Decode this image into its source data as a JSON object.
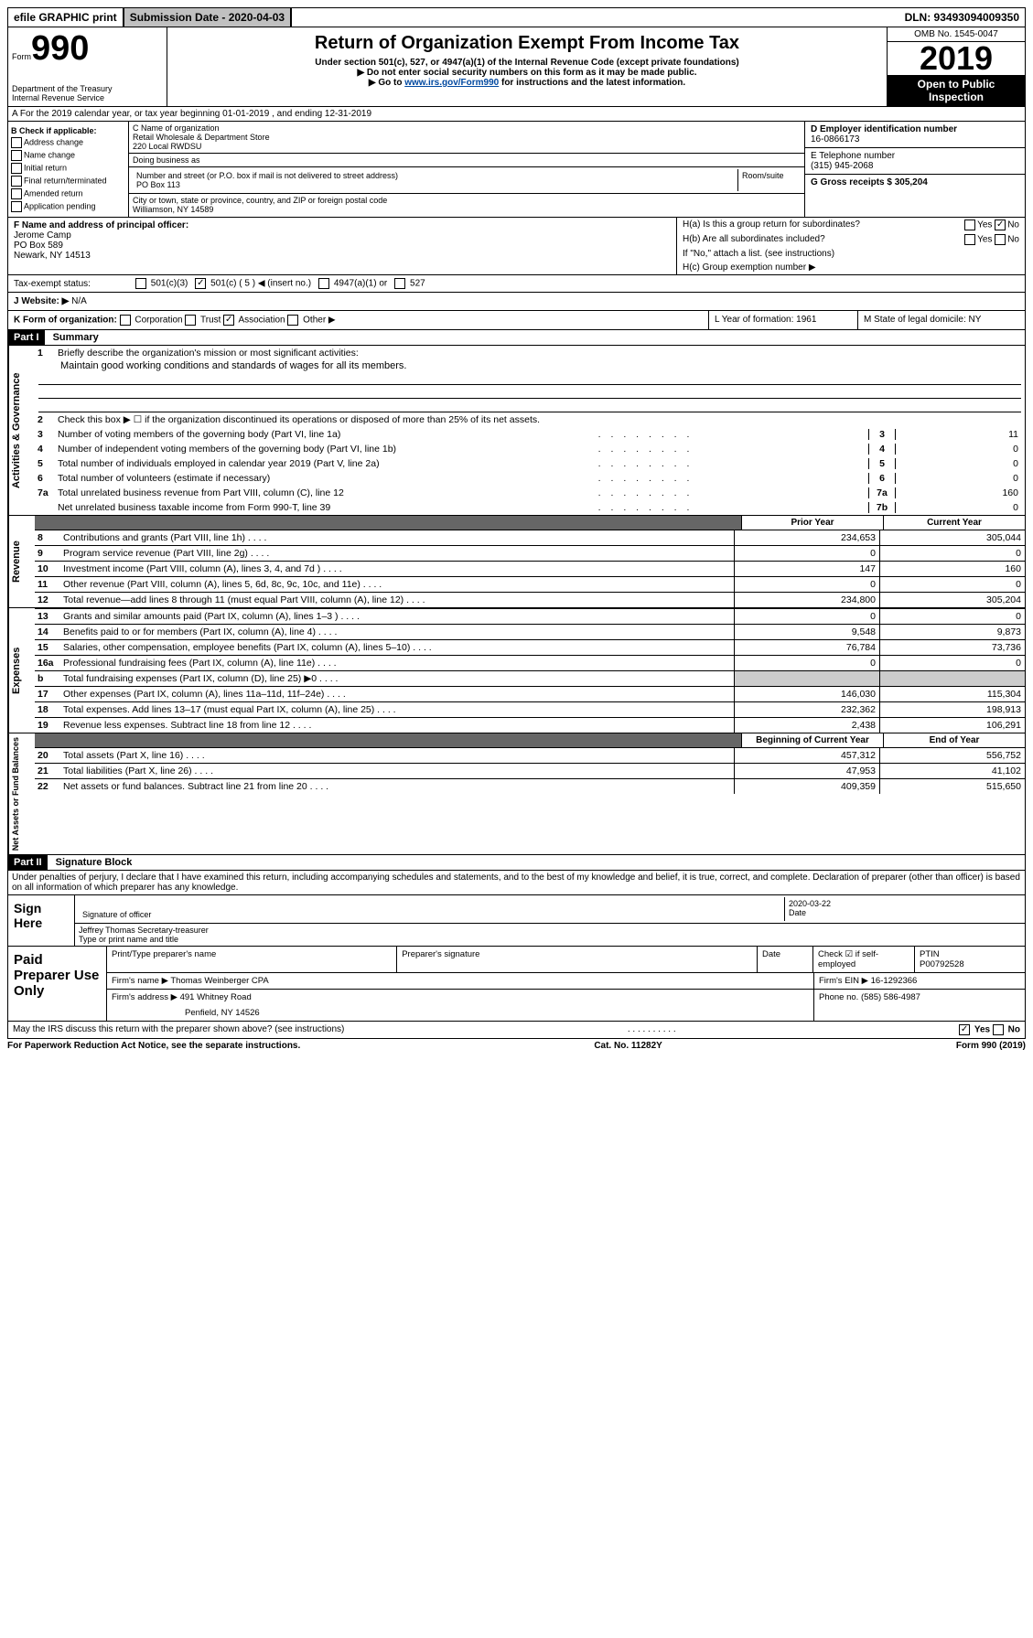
{
  "top": {
    "efile": "efile GRAPHIC print",
    "submission": "Submission Date - 2020-04-03",
    "dln": "DLN: 93493094009350"
  },
  "header": {
    "form": "Form",
    "num": "990",
    "dept": "Department of the Treasury\nInternal Revenue Service",
    "title": "Return of Organization Exempt From Income Tax",
    "sub1": "Under section 501(c), 527, or 4947(a)(1) of the Internal Revenue Code (except private foundations)",
    "sub2": "▶ Do not enter social security numbers on this form as it may be made public.",
    "sub3_pre": "▶ Go to ",
    "sub3_link": "www.irs.gov/Form990",
    "sub3_post": " for instructions and the latest information.",
    "omb": "OMB No. 1545-0047",
    "year": "2019",
    "open": "Open to Public Inspection"
  },
  "rowA": "A   For the 2019 calendar year, or tax year beginning 01-01-2019    , and ending 12-31-2019",
  "b": {
    "label": "B Check if applicable:",
    "opts": [
      "Address change",
      "Name change",
      "Initial return",
      "Final return/terminated",
      "Amended return",
      "Application pending"
    ]
  },
  "c": {
    "name_label": "C Name of organization",
    "name": "Retail Wholesale & Department Store",
    "name2": "220 Local RWDSU",
    "dba": "Doing business as",
    "addr_label": "Number and street (or P.O. box if mail is not delivered to street address)",
    "room": "Room/suite",
    "addr": "PO Box 113",
    "city_label": "City or town, state or province, country, and ZIP or foreign postal code",
    "city": "Williamson, NY  14589"
  },
  "d": {
    "label": "D Employer identification number",
    "val": "16-0866173"
  },
  "e": {
    "label": "E Telephone number",
    "val": "(315) 945-2068"
  },
  "g": {
    "label": "G Gross receipts $ 305,204"
  },
  "f": {
    "label": "F  Name and address of principal officer:",
    "name": "Jerome Camp",
    "addr": "PO Box 589",
    "city": "Newark, NY  14513"
  },
  "h": {
    "a": "H(a)  Is this a group return for subordinates?",
    "b": "H(b)  Are all subordinates included?",
    "b_note": "If \"No,\" attach a list. (see instructions)",
    "c": "H(c)  Group exemption number ▶"
  },
  "tax": {
    "label": "Tax-exempt status:",
    "c3": "501(c)(3)",
    "c": "501(c) ( 5 ) ◀ (insert no.)",
    "a1": "4947(a)(1) or",
    "s527": "527"
  },
  "j": {
    "label": "J   Website: ▶",
    "val": "N/A"
  },
  "k": {
    "label": "K Form of organization:",
    "corp": "Corporation",
    "trust": "Trust",
    "assoc": "Association",
    "other": "Other ▶"
  },
  "l": {
    "label": "L Year of formation: 1961"
  },
  "m": {
    "label": "M State of legal domicile: NY"
  },
  "part1": {
    "header": "Part I",
    "title": "Summary",
    "q1": "Briefly describe the organization's mission or most significant activities:",
    "mission": "Maintain good working conditions and standards of wages for all its members.",
    "q2": "Check this box ▶ ☐  if the organization discontinued its operations or disposed of more than 25% of its net assets.",
    "lines": [
      {
        "n": "3",
        "d": "Number of voting members of the governing body (Part VI, line 1a)",
        "c": "3",
        "v": "11"
      },
      {
        "n": "4",
        "d": "Number of independent voting members of the governing body (Part VI, line 1b)",
        "c": "4",
        "v": "0"
      },
      {
        "n": "5",
        "d": "Total number of individuals employed in calendar year 2019 (Part V, line 2a)",
        "c": "5",
        "v": "0"
      },
      {
        "n": "6",
        "d": "Total number of volunteers (estimate if necessary)",
        "c": "6",
        "v": "0"
      },
      {
        "n": "7a",
        "d": "Total unrelated business revenue from Part VIII, column (C), line 12",
        "c": "7a",
        "v": "160"
      },
      {
        "n": "",
        "d": "Net unrelated business taxable income from Form 990-T, line 39",
        "c": "7b",
        "v": "0"
      }
    ],
    "col1": "Prior Year",
    "col2": "Current Year",
    "revenue": [
      {
        "n": "8",
        "d": "Contributions and grants (Part VIII, line 1h)",
        "v1": "234,653",
        "v2": "305,044"
      },
      {
        "n": "9",
        "d": "Program service revenue (Part VIII, line 2g)",
        "v1": "0",
        "v2": "0"
      },
      {
        "n": "10",
        "d": "Investment income (Part VIII, column (A), lines 3, 4, and 7d )",
        "v1": "147",
        "v2": "160"
      },
      {
        "n": "11",
        "d": "Other revenue (Part VIII, column (A), lines 5, 6d, 8c, 9c, 10c, and 11e)",
        "v1": "0",
        "v2": "0"
      },
      {
        "n": "12",
        "d": "Total revenue—add lines 8 through 11 (must equal Part VIII, column (A), line 12)",
        "v1": "234,800",
        "v2": "305,204"
      }
    ],
    "expenses": [
      {
        "n": "13",
        "d": "Grants and similar amounts paid (Part IX, column (A), lines 1–3 )",
        "v1": "0",
        "v2": "0"
      },
      {
        "n": "14",
        "d": "Benefits paid to or for members (Part IX, column (A), line 4)",
        "v1": "9,548",
        "v2": "9,873"
      },
      {
        "n": "15",
        "d": "Salaries, other compensation, employee benefits (Part IX, column (A), lines 5–10)",
        "v1": "76,784",
        "v2": "73,736"
      },
      {
        "n": "16a",
        "d": "Professional fundraising fees (Part IX, column (A), line 11e)",
        "v1": "0",
        "v2": "0"
      },
      {
        "n": "b",
        "d": "Total fundraising expenses (Part IX, column (D), line 25) ▶0",
        "v1": "",
        "v2": ""
      },
      {
        "n": "17",
        "d": "Other expenses (Part IX, column (A), lines 11a–11d, 11f–24e)",
        "v1": "146,030",
        "v2": "115,304"
      },
      {
        "n": "18",
        "d": "Total expenses. Add lines 13–17 (must equal Part IX, column (A), line 25)",
        "v1": "232,362",
        "v2": "198,913"
      },
      {
        "n": "19",
        "d": "Revenue less expenses. Subtract line 18 from line 12",
        "v1": "2,438",
        "v2": "106,291"
      }
    ],
    "col3": "Beginning of Current Year",
    "col4": "End of Year",
    "assets": [
      {
        "n": "20",
        "d": "Total assets (Part X, line 16)",
        "v1": "457,312",
        "v2": "556,752"
      },
      {
        "n": "21",
        "d": "Total liabilities (Part X, line 26)",
        "v1": "47,953",
        "v2": "41,102"
      },
      {
        "n": "22",
        "d": "Net assets or fund balances. Subtract line 21 from line 20",
        "v1": "409,359",
        "v2": "515,650"
      }
    ]
  },
  "part2": {
    "header": "Part II",
    "title": "Signature Block",
    "declare": "Under penalties of perjury, I declare that I have examined this return, including accompanying schedules and statements, and to the best of my knowledge and belief, it is true, correct, and complete. Declaration of preparer (other than officer) is based on all information of which preparer has any knowledge."
  },
  "sign": {
    "left": "Sign Here",
    "sig_label": "Signature of officer",
    "date": "2020-03-22",
    "date_label": "Date",
    "name": "Jeffrey Thomas Secretary-treasurer",
    "name_label": "Type or print name and title"
  },
  "paid": {
    "left": "Paid Preparer Use Only",
    "print_label": "Print/Type preparer's name",
    "sig_label": "Preparer's signature",
    "date_label": "Date",
    "check_label": "Check ☑ if self-employed",
    "ptin_label": "PTIN",
    "ptin": "P00792528",
    "firm_label": "Firm's name  ▶",
    "firm": "Thomas Weinberger CPA",
    "ein_label": "Firm's EIN ▶",
    "ein": "16-1292366",
    "addr_label": "Firm's address ▶",
    "addr": "491 Whitney Road",
    "addr2": "Penfield, NY  14526",
    "phone_label": "Phone no.",
    "phone": "(585) 586-4987"
  },
  "footer": {
    "q": "May the IRS discuss this return with the preparer shown above? (see instructions)",
    "yes": "Yes",
    "no": "No",
    "paperwork": "For Paperwork Reduction Act Notice, see the separate instructions.",
    "cat": "Cat. No. 11282Y",
    "form": "Form 990 (2019)"
  },
  "vlabels": {
    "gov": "Activities & Governance",
    "rev": "Revenue",
    "exp": "Expenses",
    "net": "Net Assets or Fund Balances"
  }
}
